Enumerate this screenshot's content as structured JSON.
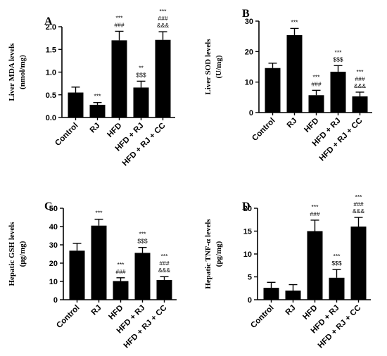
{
  "chart_data": [
    {
      "panel": "A",
      "type": "bar",
      "ylabel": [
        "Liver MDA levels",
        "(nmol/mg)"
      ],
      "categories": [
        "Control",
        "RJ",
        "HFD",
        "HFD + RJ",
        "HFD + RJ + CC"
      ],
      "values": [
        0.55,
        0.28,
        1.7,
        0.66,
        1.71
      ],
      "errors": [
        0.12,
        0.05,
        0.2,
        0.14,
        0.18
      ],
      "ylim": [
        0,
        2.0
      ],
      "yticks": [
        "0.0",
        "0.5",
        "1.0",
        "1.5",
        "2.0"
      ],
      "annotations": [
        [],
        [
          "***"
        ],
        [
          "***",
          "###"
        ],
        [
          "**",
          "$$$"
        ],
        [
          "***",
          "###",
          "&&&"
        ]
      ]
    },
    {
      "panel": "B",
      "type": "bar",
      "ylabel": [
        "Liver SOD levels",
        "(U/mg)"
      ],
      "categories": [
        "Control",
        "RJ",
        "HFD",
        "HFD + RJ",
        "HFD + RJ + CC"
      ],
      "values": [
        14.6,
        25.4,
        5.7,
        13.4,
        5.3
      ],
      "errors": [
        1.6,
        2.2,
        1.6,
        2.0,
        1.4
      ],
      "ylim": [
        0,
        30
      ],
      "yticks": [
        "0",
        "10",
        "20",
        "30"
      ],
      "annotations": [
        [],
        [
          "***"
        ],
        [
          "***",
          "###"
        ],
        [
          "***",
          "$$$"
        ],
        [
          "***",
          "###",
          "&&&"
        ]
      ]
    },
    {
      "panel": "C",
      "type": "bar",
      "ylabel": [
        "Hepatic GSH levels",
        "(μg/mg)"
      ],
      "categories": [
        "Control",
        "RJ",
        "HFD",
        "HFD + RJ",
        "HFD + RJ + CC"
      ],
      "values": [
        26.8,
        40.5,
        10.2,
        25.6,
        10.8
      ],
      "errors": [
        4.0,
        3.5,
        1.8,
        3.0,
        1.8
      ],
      "ylim": [
        0,
        50
      ],
      "yticks": [
        "0",
        "10",
        "20",
        "30",
        "40",
        "50"
      ],
      "annotations": [
        [],
        [
          "***"
        ],
        [
          "***",
          "###"
        ],
        [
          "***",
          "$$$"
        ],
        [
          "***",
          "###",
          "&&&"
        ]
      ]
    },
    {
      "panel": "D",
      "type": "bar",
      "ylabel": [
        "Hepatic TNF-α levels",
        "(pg/mg)"
      ],
      "categories": [
        "Control",
        "RJ",
        "HFD",
        "HFD + RJ",
        "HFD + RJ + CC"
      ],
      "values": [
        2.6,
        2.0,
        15.0,
        4.8,
        16.0
      ],
      "errors": [
        1.2,
        1.3,
        2.4,
        1.8,
        2.0
      ],
      "ylim": [
        0,
        20
      ],
      "yticks": [
        "0",
        "5",
        "10",
        "15",
        "20"
      ],
      "annotations": [
        [],
        [],
        [
          "***",
          "###"
        ],
        [
          "***",
          "$$$"
        ],
        [
          "***",
          "###",
          "&&&"
        ]
      ]
    }
  ]
}
